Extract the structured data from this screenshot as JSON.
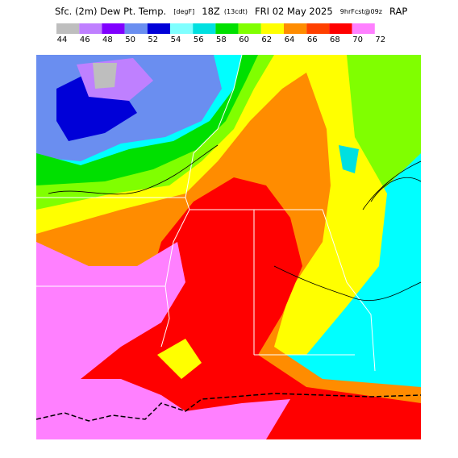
{
  "header": {
    "title": "Sfc. (2m) Dew Pt. Temp.",
    "units": "[degF]",
    "time": "18Z",
    "local_time": "(13cdt)",
    "date": "FRI 02 May 2025",
    "forecast": "9hrFcst@09z",
    "model": "RAP"
  },
  "legend": {
    "colors": [
      "#bebebe",
      "#bf80ff",
      "#8000ff",
      "#6a8ef0",
      "#0000d8",
      "#80ffff",
      "#00e0e0",
      "#00e000",
      "#80ff00",
      "#ffff00",
      "#ff8c00",
      "#ff4000",
      "#ff0000",
      "#ff80ff"
    ],
    "labels": [
      "44",
      "46",
      "48",
      "50",
      "52",
      "54",
      "56",
      "58",
      "60",
      "62",
      "64",
      "66",
      "68",
      "70",
      "72"
    ]
  }
}
